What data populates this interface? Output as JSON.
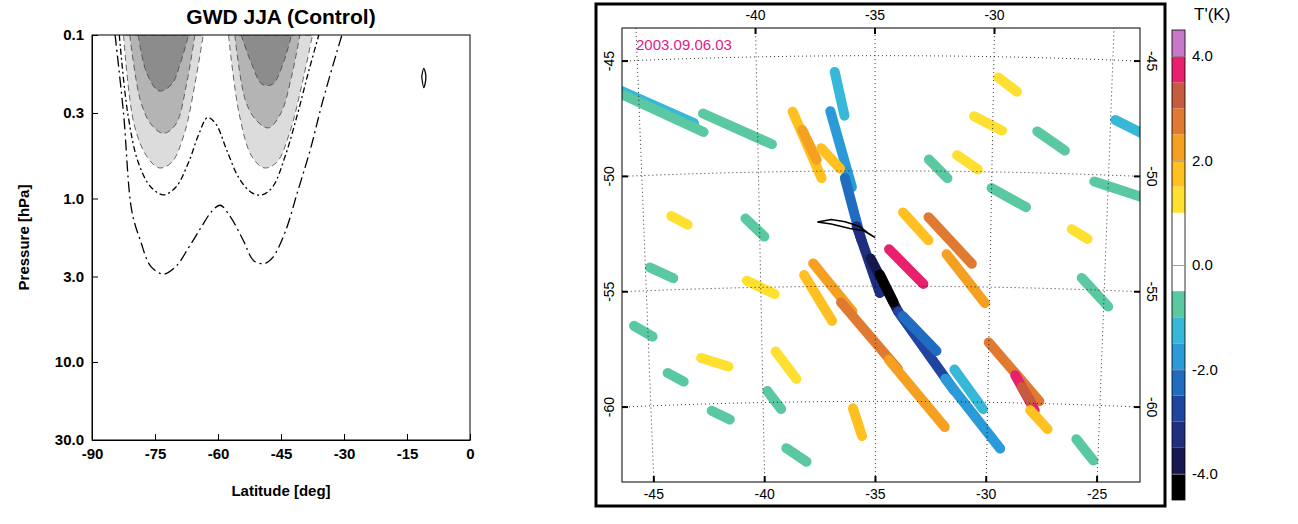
{
  "chart_data": [
    {
      "type": "contour",
      "title": "GWD JJA (Control)",
      "x_label": "Latitude [deg]",
      "y_label": "Pressure [hPa]",
      "log": "y",
      "grid": false,
      "xlim": [
        -90,
        0
      ],
      "ylim": [
        30,
        0.1
      ],
      "xticks": [
        -90,
        -75,
        -60,
        -45,
        -30,
        -15,
        0
      ],
      "yticks": [
        0.1,
        0.3,
        {
          "value": 1,
          "label": "1.0"
        },
        {
          "value": 3,
          "label": "3.0"
        },
        {
          "value": 10,
          "label": "10.0"
        },
        {
          "value": 30,
          "label": "30.0"
        }
      ],
      "series": [
        {
          "type": "area",
          "color": "#dcdcdc",
          "line_style": "dashed",
          "x": [
            -82.5,
            -80,
            -77,
            -74,
            -71,
            -68,
            -65.5,
            -63.5
          ],
          "values": [
            0.1,
            0.35,
            0.55,
            0.65,
            0.6,
            0.4,
            0.2,
            0.1
          ]
        },
        {
          "type": "area",
          "color": "#dcdcdc",
          "line_style": "dashed",
          "x": [
            -57.5,
            -55,
            -52,
            -49,
            -46,
            -43,
            -40,
            -37.5
          ],
          "values": [
            0.1,
            0.3,
            0.55,
            0.65,
            0.6,
            0.4,
            0.2,
            0.1
          ]
        },
        {
          "type": "area",
          "color": "#b4b4b4",
          "line_style": "dashed",
          "x": [
            -81,
            -78.5,
            -76,
            -73,
            -70,
            -67.5,
            -65.5
          ],
          "values": [
            0.1,
            0.25,
            0.35,
            0.4,
            0.35,
            0.2,
            0.1
          ]
        },
        {
          "type": "area",
          "color": "#b4b4b4",
          "line_style": "dashed",
          "x": [
            -56,
            -53.5,
            -51,
            -48,
            -45,
            -42.5,
            -40.5
          ],
          "values": [
            0.1,
            0.25,
            0.33,
            0.37,
            0.3,
            0.18,
            0.1
          ]
        },
        {
          "type": "area",
          "color": "#8c8c8c",
          "line_style": "dashed",
          "x": [
            -79,
            -77,
            -74,
            -71,
            -69,
            -67
          ],
          "values": [
            0.1,
            0.17,
            0.22,
            0.2,
            0.15,
            0.1
          ]
        },
        {
          "type": "area",
          "color": "#8c8c8c",
          "line_style": "dashed",
          "x": [
            -54.5,
            -52,
            -49.5,
            -47,
            -44.5,
            -42.5
          ],
          "values": [
            0.1,
            0.15,
            0.2,
            0.2,
            0.15,
            0.1
          ]
        },
        {
          "type": "line",
          "color": "#000000",
          "line_style": "long-dashdot",
          "x": [
            -84.5,
            -82.5,
            -80.5,
            -78.5,
            -76,
            -73,
            -70,
            -67,
            -64,
            -61.5,
            -59.5,
            -57,
            -54,
            -51.5,
            -49,
            -47,
            -44,
            -41,
            -38,
            -35,
            -30.5
          ],
          "values": [
            0.1,
            0.3,
            1.2,
            1.8,
            2.6,
            2.9,
            2.6,
            2.0,
            1.5,
            1.2,
            1.1,
            1.3,
            1.8,
            2.4,
            2.5,
            2.3,
            1.6,
            0.9,
            0.5,
            0.25,
            0.1
          ]
        },
        {
          "type": "line",
          "color": "#000000",
          "line_style": "dashdot",
          "x": [
            -83.5,
            -81.5,
            -79,
            -76,
            -73,
            -70,
            -67,
            -64.5,
            -62.5,
            -60.5,
            -58,
            -55,
            -52,
            -49.5,
            -47,
            -44,
            -41,
            -38.5,
            -36
          ],
          "values": [
            0.1,
            0.3,
            0.6,
            0.85,
            0.95,
            0.85,
            0.6,
            0.4,
            0.32,
            0.35,
            0.5,
            0.75,
            0.92,
            0.95,
            0.85,
            0.55,
            0.3,
            0.17,
            0.1
          ]
        },
        {
          "type": "line",
          "color": "#000000",
          "line_style": "solid",
          "x": [
            -11.5,
            -11,
            -10.5,
            -11,
            -11.5
          ],
          "values": [
            0.18,
            0.16,
            0.18,
            0.21,
            0.18
          ]
        }
      ]
    },
    {
      "type": "map",
      "annotation": "2003.09.06.03",
      "grid": true,
      "xlim": [
        -46,
        -23.5
      ],
      "ylim": [
        -63.5,
        -43.8
      ],
      "xticks": [
        -45,
        -40,
        -35,
        -30,
        -25
      ],
      "yticks": [
        -60,
        -55,
        -50,
        -45
      ],
      "colorbar": {
        "title": "T'(K)",
        "range": [
          -4.5,
          4.5
        ],
        "levels": [
          -4.5,
          -4,
          -3.5,
          -3,
          -2.5,
          -2,
          -1.5,
          -1,
          -0.5,
          0,
          0.5,
          1,
          1.5,
          2,
          2.5,
          3,
          3.5,
          4,
          4.5
        ],
        "colors": [
          "#000000",
          "#181850",
          "#1f2f80",
          "#2045a0",
          "#1f6cc0",
          "#2a9ad8",
          "#38b8d8",
          "#5ac8a0",
          "#ffffff",
          "#ffffff",
          "#ffffff",
          "#ffe030",
          "#ffc020",
          "#f5a020",
          "#e07a30",
          "#c85a40",
          "#e8206e",
          "#c878c8"
        ],
        "ticks": [
          {
            "value": -4,
            "label": "-4.0"
          },
          {
            "value": -2,
            "label": "-2.0"
          },
          {
            "value": 0,
            "label": "0.0"
          },
          {
            "value": 2,
            "label": "2.0"
          },
          {
            "value": 4,
            "label": "4.0"
          }
        ]
      },
      "streaks": [
        {
          "lon": [
            -36.7,
            -36.3
          ],
          "lat": [
            -45.7,
            -47.6
          ],
          "value": -1.5
        },
        {
          "lon": [
            -36.9,
            -36.0
          ],
          "lat": [
            -47.4,
            -50.7
          ],
          "value": -2.0
        },
        {
          "lon": [
            -36.3,
            -35.6
          ],
          "lat": [
            -50.3,
            -53.0
          ],
          "value": -2.5
        },
        {
          "lon": [
            -35.8,
            -34.8
          ],
          "lat": [
            -52.4,
            -55.3
          ],
          "value": -3.5
        },
        {
          "lon": [
            -35.2,
            -34.0
          ],
          "lat": [
            -53.8,
            -56.1
          ],
          "value": -4.0
        },
        {
          "lon": [
            -34.8,
            -34.2
          ],
          "lat": [
            -54.5,
            -55.7
          ],
          "value": -4.5
        },
        {
          "lon": [
            -34.0,
            -31.5
          ],
          "lat": [
            -56.1,
            -59.5
          ],
          "value": -3.0
        },
        {
          "lon": [
            -33.8,
            -32.3
          ],
          "lat": [
            -56.3,
            -57.8
          ],
          "value": -2.5
        },
        {
          "lon": [
            -31.9,
            -29.4
          ],
          "lat": [
            -59.0,
            -62.0
          ],
          "value": -2.0
        },
        {
          "lon": [
            -31.5,
            -30.2
          ],
          "lat": [
            -58.6,
            -60.3
          ],
          "value": -1.5
        },
        {
          "lon": [
            -46.5,
            -42.7
          ],
          "lat": [
            -45.9,
            -47.8
          ],
          "value": -1.5
        },
        {
          "lon": [
            -45.6,
            -42.3
          ],
          "lat": [
            -46.5,
            -48.2
          ],
          "value": -1.0
        },
        {
          "lon": [
            -42.3,
            -39.4
          ],
          "lat": [
            -47.4,
            -48.8
          ],
          "value": -1.0
        },
        {
          "lon": [
            -24.8,
            -23.5
          ],
          "lat": [
            -47.6,
            -48.2
          ],
          "value": -1.5
        },
        {
          "lon": [
            -30.0,
            -28.5
          ],
          "lat": [
            -50.7,
            -51.5
          ],
          "value": -1.0
        },
        {
          "lon": [
            -26.0,
            -24.8
          ],
          "lat": [
            -54.5,
            -55.7
          ],
          "value": -1.0
        },
        {
          "lon": [
            -25.6,
            -23.5
          ],
          "lat": [
            -50.3,
            -50.9
          ],
          "value": -1.0
        },
        {
          "lon": [
            -45.6,
            -44.8
          ],
          "lat": [
            -56.5,
            -57.0
          ],
          "value": -1.0
        },
        {
          "lon": [
            -42.3,
            -41.5
          ],
          "lat": [
            -60.3,
            -60.7
          ],
          "value": -1.0
        },
        {
          "lon": [
            -40.6,
            -39.8
          ],
          "lat": [
            -52.0,
            -52.8
          ],
          "value": -1.0
        },
        {
          "lon": [
            -32.7,
            -31.9
          ],
          "lat": [
            -49.5,
            -50.3
          ],
          "value": -1.0
        },
        {
          "lon": [
            -28.1,
            -26.9
          ],
          "lat": [
            -48.2,
            -49.0
          ],
          "value": -1.0
        },
        {
          "lon": [
            -26.0,
            -25.2
          ],
          "lat": [
            -61.5,
            -62.4
          ],
          "value": -1.0
        },
        {
          "lon": [
            -39.0,
            -38.1
          ],
          "lat": [
            -62.0,
            -62.6
          ],
          "value": -1.0
        },
        {
          "lon": [
            -44.2,
            -43.5
          ],
          "lat": [
            -58.6,
            -59.0
          ],
          "value": -1.0
        },
        {
          "lon": [
            -44.8,
            -43.8
          ],
          "lat": [
            -54.0,
            -54.5
          ],
          "value": -1.0
        },
        {
          "lon": [
            -39.8,
            -39.2
          ],
          "lat": [
            -59.5,
            -60.3
          ],
          "value": -1.0
        },
        {
          "lon": [
            -38.5,
            -37.3
          ],
          "lat": [
            -47.4,
            -50.3
          ],
          "value": 1.5
        },
        {
          "lon": [
            -38.1,
            -37.5
          ],
          "lat": [
            -48.2,
            -49.5
          ],
          "value": 2.0
        },
        {
          "lon": [
            -37.7,
            -36.0
          ],
          "lat": [
            -54.0,
            -56.1
          ],
          "value": 2.0
        },
        {
          "lon": [
            -36.5,
            -34.0
          ],
          "lat": [
            -55.7,
            -58.6
          ],
          "value": 2.5
        },
        {
          "lon": [
            -34.4,
            -31.9
          ],
          "lat": [
            -58.2,
            -61.1
          ],
          "value": 2.0
        },
        {
          "lon": [
            -38.1,
            -36.9
          ],
          "lat": [
            -54.5,
            -56.5
          ],
          "value": 1.5
        },
        {
          "lon": [
            -34.4,
            -32.9
          ],
          "lat": [
            -53.4,
            -54.9
          ],
          "value": 3.5
        },
        {
          "lon": [
            -32.7,
            -30.8
          ],
          "lat": [
            -52.0,
            -54.0
          ],
          "value": 2.5
        },
        {
          "lon": [
            -31.9,
            -30.2
          ],
          "lat": [
            -53.6,
            -55.7
          ],
          "value": 2.0
        },
        {
          "lon": [
            -33.8,
            -32.7
          ],
          "lat": [
            -51.8,
            -53.0
          ],
          "value": 1.5
        },
        {
          "lon": [
            -30.0,
            -27.7
          ],
          "lat": [
            -57.4,
            -59.9
          ],
          "value": 2.5
        },
        {
          "lon": [
            -28.8,
            -27.9
          ],
          "lat": [
            -58.8,
            -60.3
          ],
          "value": 3.8
        },
        {
          "lon": [
            -28.5,
            -28.1
          ],
          "lat": [
            -59.3,
            -59.9
          ],
          "value": 3.3
        },
        {
          "lon": [
            -28.1,
            -27.3
          ],
          "lat": [
            -60.3,
            -61.1
          ],
          "value": 1.5
        },
        {
          "lon": [
            -43.8,
            -43.1
          ],
          "lat": [
            -51.8,
            -52.2
          ],
          "value": 1.0
        },
        {
          "lon": [
            -39.4,
            -38.5
          ],
          "lat": [
            -57.8,
            -59.0
          ],
          "value": 1.0
        },
        {
          "lon": [
            -36.0,
            -35.6
          ],
          "lat": [
            -60.3,
            -61.5
          ],
          "value": 1.5
        },
        {
          "lon": [
            -42.7,
            -41.5
          ],
          "lat": [
            -58.0,
            -58.4
          ],
          "value": 1.0
        },
        {
          "lon": [
            -30.8,
            -29.6
          ],
          "lat": [
            -47.6,
            -48.2
          ],
          "value": 1.0
        },
        {
          "lon": [
            -29.8,
            -29.0
          ],
          "lat": [
            -45.9,
            -46.5
          ],
          "value": 1.0
        },
        {
          "lon": [
            -31.5,
            -30.6
          ],
          "lat": [
            -49.3,
            -49.9
          ],
          "value": 1.0
        },
        {
          "lon": [
            -40.6,
            -39.4
          ],
          "lat": [
            -54.7,
            -55.3
          ],
          "value": 1.0
        },
        {
          "lon": [
            -26.5,
            -25.8
          ],
          "lat": [
            -52.4,
            -52.8
          ],
          "value": 1.0
        },
        {
          "lon": [
            -37.3,
            -36.5
          ],
          "lat": [
            -49.0,
            -49.9
          ],
          "value": 1.5
        }
      ],
      "coastline": {
        "lon": [
          -37.5,
          -36.9,
          -36.3,
          -35.7,
          -35.3,
          -35.0,
          -35.5,
          -36.1,
          -36.9,
          -37.5
        ],
        "lat": [
          -52.2,
          -52.1,
          -52.2,
          -52.4,
          -52.7,
          -52.9,
          -52.6,
          -52.5,
          -52.3,
          -52.2
        ]
      }
    }
  ]
}
